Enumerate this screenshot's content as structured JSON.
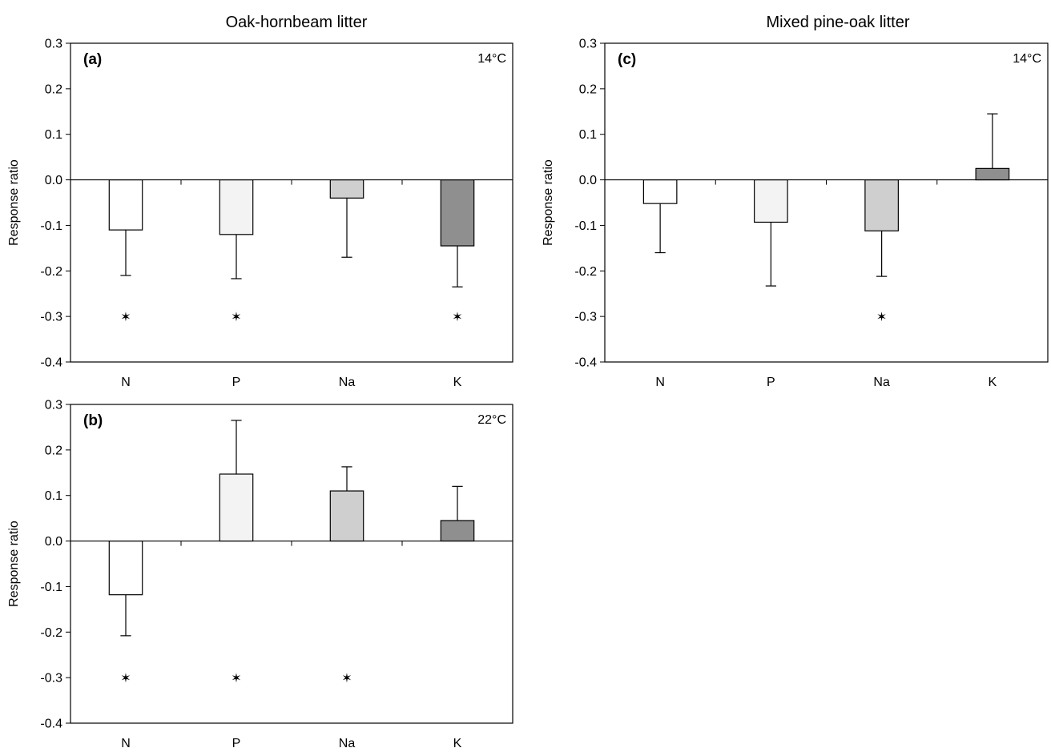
{
  "column_titles": [
    "Oak-hornbeam litter",
    "Mixed pine-oak litter"
  ],
  "chart_data": [
    {
      "type": "bar",
      "panel": "(a)",
      "temperature": "14°C",
      "column_title": "Oak-hornbeam litter",
      "ylabel": "Response ratio",
      "ylim": [
        -0.4,
        0.3
      ],
      "yticks": [
        "0.3",
        "0.2",
        "0.1",
        "0.0",
        "-0.1",
        "-0.2",
        "-0.3",
        "-0.4"
      ],
      "categories": [
        "N",
        "P",
        "Na",
        "K"
      ],
      "values": [
        -0.11,
        -0.12,
        -0.04,
        -0.145
      ],
      "errors": [
        0.1,
        0.097,
        0.13,
        0.09
      ],
      "significant": [
        true,
        true,
        false,
        true
      ],
      "bar_colors": [
        "#ffffff",
        "#f3f3f3",
        "#cfcfcf",
        "#8f8f8f"
      ],
      "marker": "✶",
      "grid": false
    },
    {
      "type": "bar",
      "panel": "(b)",
      "temperature": "22°C",
      "ylabel": "Response ratio",
      "ylim": [
        -0.4,
        0.3
      ],
      "yticks": [
        "0.3",
        "0.2",
        "0.1",
        "0.0",
        "-0.1",
        "-0.2",
        "-0.3",
        "-0.4"
      ],
      "categories": [
        "N",
        "P",
        "Na",
        "K"
      ],
      "values": [
        -0.118,
        0.147,
        0.11,
        0.045
      ],
      "errors": [
        0.09,
        0.118,
        0.053,
        0.075
      ],
      "significant": [
        true,
        true,
        true,
        false
      ],
      "bar_colors": [
        "#ffffff",
        "#f3f3f3",
        "#cfcfcf",
        "#8f8f8f"
      ],
      "marker": "✶",
      "grid": false
    },
    {
      "type": "bar",
      "panel": "(c)",
      "temperature": "14°C",
      "column_title": "Mixed pine-oak litter",
      "ylabel": "Response ratio",
      "ylim": [
        -0.4,
        0.3
      ],
      "yticks": [
        "0.3",
        "0.2",
        "0.1",
        "0.0",
        "-0.1",
        "-0.2",
        "-0.3",
        "-0.4"
      ],
      "categories": [
        "N",
        "P",
        "Na",
        "K"
      ],
      "values": [
        -0.052,
        -0.093,
        -0.112,
        0.025
      ],
      "errors": [
        0.108,
        0.14,
        0.1,
        0.12
      ],
      "significant": [
        false,
        false,
        true,
        false
      ],
      "bar_colors": [
        "#ffffff",
        "#f3f3f3",
        "#cfcfcf",
        "#8f8f8f"
      ],
      "marker": "✶",
      "grid": false
    }
  ]
}
